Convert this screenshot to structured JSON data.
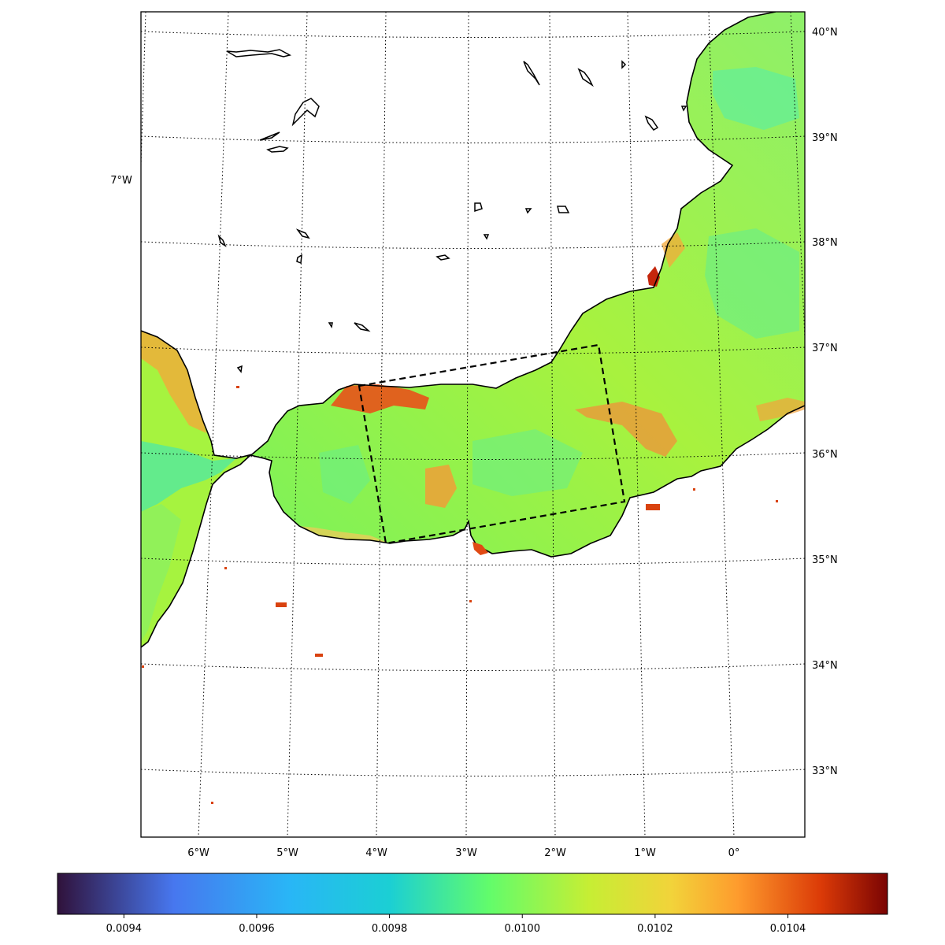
{
  "map": {
    "region": "Alboran Sea / Strait of Gibraltar",
    "graticule_style": "dotted",
    "lat_labels": [
      "40°N",
      "39°N",
      "38°N",
      "37°N",
      "36°N",
      "35°N",
      "34°N",
      "33°N"
    ],
    "lon_labels": [
      "6°W",
      "5°W",
      "4°W",
      "3°W",
      "2°W",
      "1°W",
      "0°"
    ],
    "extra_lon_label": "7°W",
    "study_box": {
      "style": "dashed",
      "color": "#000000"
    },
    "land_color": "#ffffff",
    "coast_color": "#000000"
  },
  "colorbar": {
    "colormap": "turbo",
    "min": 0.0093,
    "max": 0.01055,
    "ticks": [
      "0.0094",
      "0.0096",
      "0.0098",
      "0.0100",
      "0.0102",
      "0.0104"
    ],
    "tick_values": [
      0.0094,
      0.0096,
      0.0098,
      0.01,
      0.0102,
      0.0104
    ],
    "stops": [
      "#30123b",
      "#4777ef",
      "#1bcfd4",
      "#62fc6b",
      "#d2e935",
      "#fe9b2d",
      "#db3a07",
      "#7a0403"
    ]
  }
}
